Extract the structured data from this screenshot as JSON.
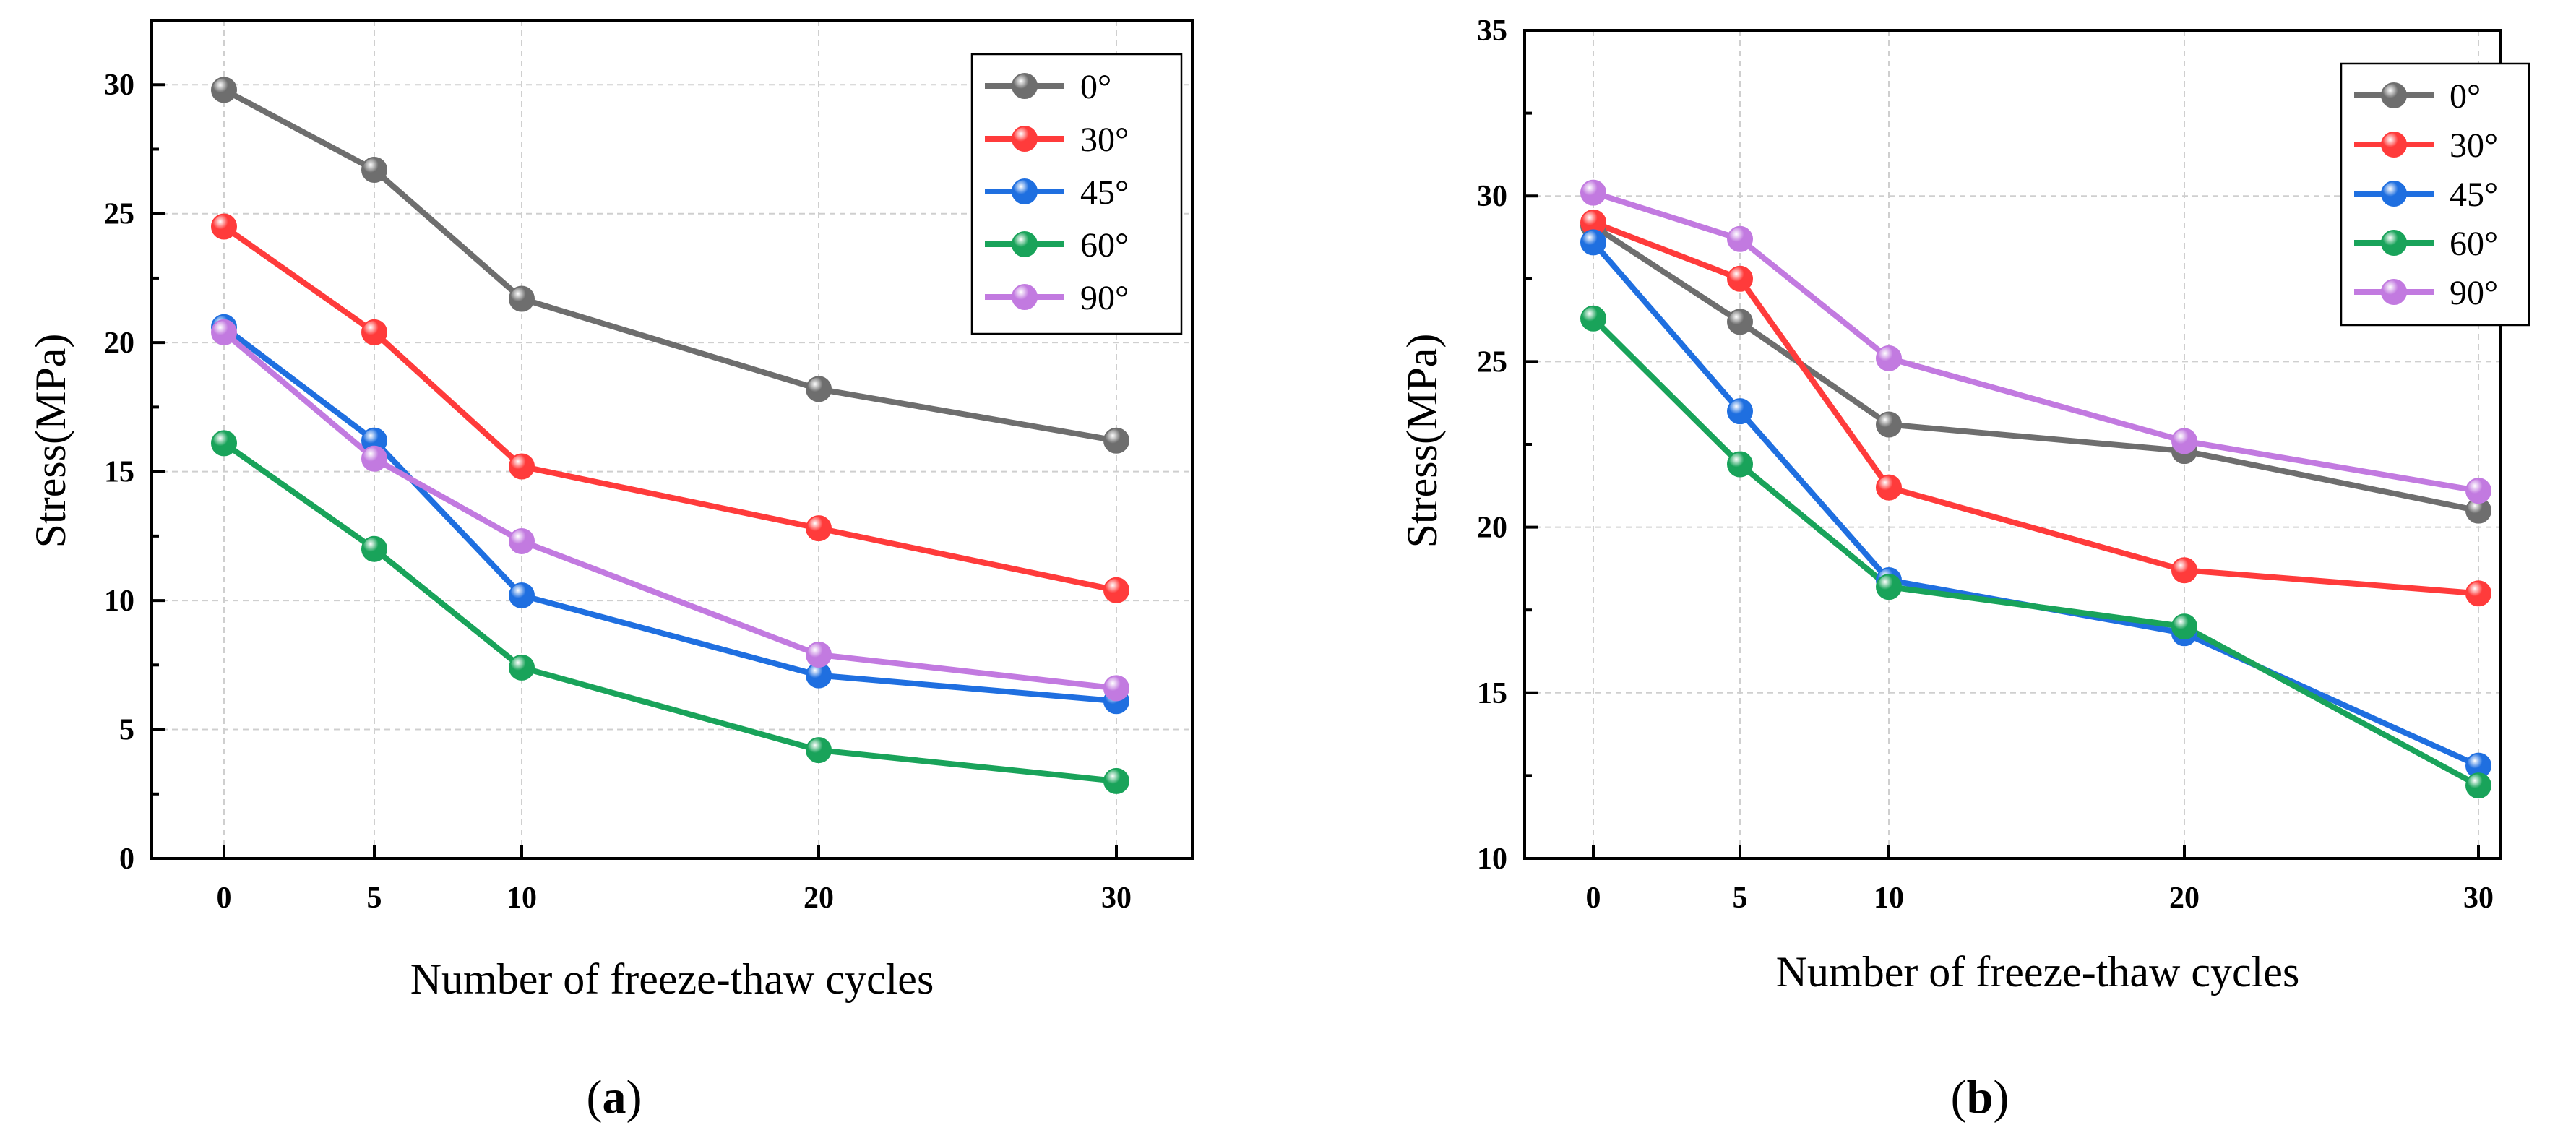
{
  "chart_data": [
    {
      "type": "line",
      "panel_label": "a",
      "xlabel": "Number of freeze-thaw cycles",
      "ylabel": "Stress(MPa)",
      "categories": [
        "0",
        "5",
        "10",
        "20",
        "30"
      ],
      "ylim": [
        0,
        32.5
      ],
      "yticks": [
        0,
        5,
        10,
        15,
        20,
        25,
        30
      ],
      "grid": true,
      "legend": "top-right",
      "series": [
        {
          "name": "0°",
          "color": "#6e6e6e",
          "values": [
            29.8,
            26.7,
            21.7,
            18.2,
            16.2
          ]
        },
        {
          "name": "30°",
          "color": "#ff3b3b",
          "values": [
            24.5,
            20.4,
            15.2,
            12.8,
            10.4
          ]
        },
        {
          "name": "45°",
          "color": "#1f6fe0",
          "values": [
            20.6,
            16.2,
            10.2,
            7.1,
            6.1
          ]
        },
        {
          "name": "60°",
          "color": "#19a35a",
          "values": [
            16.1,
            12.0,
            7.4,
            4.2,
            3.0
          ]
        },
        {
          "name": "90°",
          "color": "#c27ae0",
          "values": [
            20.4,
            15.5,
            12.3,
            7.9,
            6.6
          ]
        }
      ]
    },
    {
      "type": "line",
      "panel_label": "b",
      "xlabel": "Number of freeze-thaw cycles",
      "ylabel": "Stress(MPa)",
      "categories": [
        "0",
        "5",
        "10",
        "20",
        "30"
      ],
      "ylim": [
        10,
        35
      ],
      "yticks": [
        10,
        15,
        20,
        25,
        30,
        35
      ],
      "grid": true,
      "legend": "top-right",
      "series": [
        {
          "name": "0°",
          "color": "#6e6e6e",
          "values": [
            29.1,
            26.2,
            23.1,
            22.3,
            20.5
          ]
        },
        {
          "name": "30°",
          "color": "#ff3b3b",
          "values": [
            29.2,
            27.5,
            21.2,
            18.7,
            18.0
          ]
        },
        {
          "name": "45°",
          "color": "#1f6fe0",
          "values": [
            28.6,
            23.5,
            18.4,
            16.8,
            12.8
          ]
        },
        {
          "name": "60°",
          "color": "#19a35a",
          "values": [
            26.3,
            21.9,
            18.2,
            17.0,
            12.2
          ]
        },
        {
          "name": "90°",
          "color": "#c27ae0",
          "values": [
            30.1,
            28.7,
            25.1,
            22.6,
            21.1
          ]
        }
      ]
    }
  ]
}
